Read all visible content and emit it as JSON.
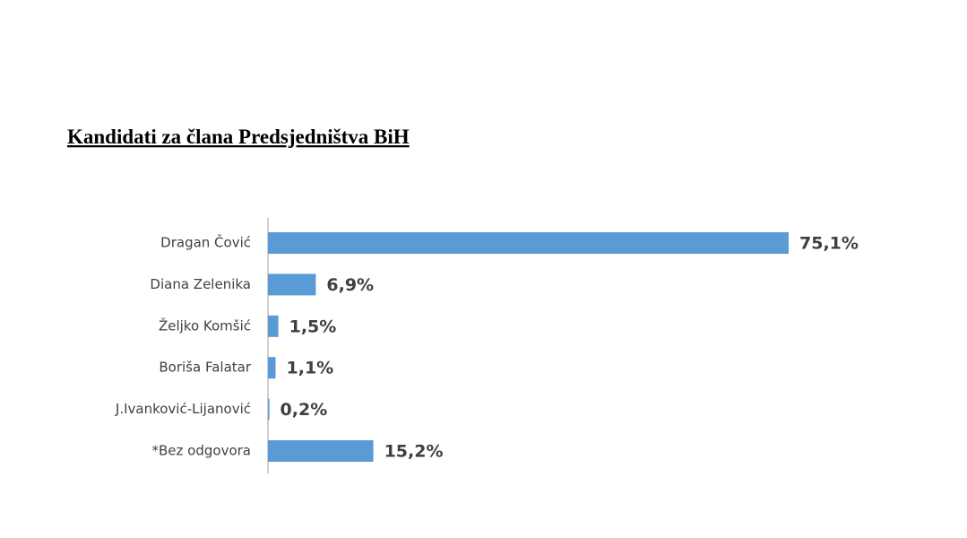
{
  "chart_data": {
    "type": "hbar",
    "title": "Kandidati za člana Predsjedništva BiH",
    "categories": [
      "Dragan Čović",
      "Diana Zelenika",
      "Željko Komšić",
      "Boriša Falatar",
      "J.Ivanković-Lijanović",
      "*Bez odgovora"
    ],
    "values": [
      75.1,
      6.9,
      1.5,
      1.1,
      0.2,
      15.2
    ],
    "value_labels": [
      "75,1%",
      "6,9%",
      "1,5%",
      "1,1%",
      "0,2%",
      "15,2%"
    ],
    "color": "#5b9bd5"
  }
}
